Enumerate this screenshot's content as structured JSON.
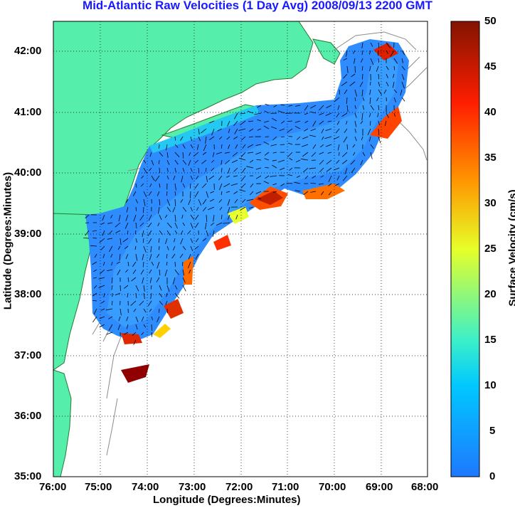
{
  "title": "Mid-Atlantic Raw Velocities (1 Day Avg) 2008/09/13 2200 GMT",
  "x_axis": {
    "label": "Longitude (Degrees:Minutes)",
    "ticks": [
      "76:00",
      "75:00",
      "74:00",
      "73:00",
      "72:00",
      "71:00",
      "70:00",
      "69:00",
      "68:00"
    ]
  },
  "y_axis": {
    "label": "Latitude (Degrees:Minutes)",
    "ticks": [
      "42:00",
      "41:00",
      "40:00",
      "39:00",
      "38:00",
      "37:00",
      "36:00",
      "35:00"
    ]
  },
  "colorbar": {
    "label": "Surface Velocity (cm/s)",
    "ticks": [
      "50",
      "45",
      "40",
      "35",
      "30",
      "25",
      "20",
      "15",
      "10",
      "5",
      "0"
    ],
    "range": [
      0,
      50
    ],
    "colors": [
      "#1e78ff",
      "#00c8ff",
      "#3cf0c8",
      "#e6ff28",
      "#ff9600",
      "#ff1e00",
      "#821400"
    ]
  },
  "colors": {
    "land": "#55eeaa",
    "coastline": "#2a7a35",
    "bathymetry": "#8c8c8c",
    "grid": "#000000"
  },
  "chart_data": {
    "type": "map",
    "title": "Mid-Atlantic Raw Velocities (1 Day Avg) 2008/09/13 2200 GMT",
    "lon_range": [
      -76,
      -68
    ],
    "lat_range": [
      35,
      42.5
    ],
    "value_units": "cm/s",
    "grid": true
  }
}
